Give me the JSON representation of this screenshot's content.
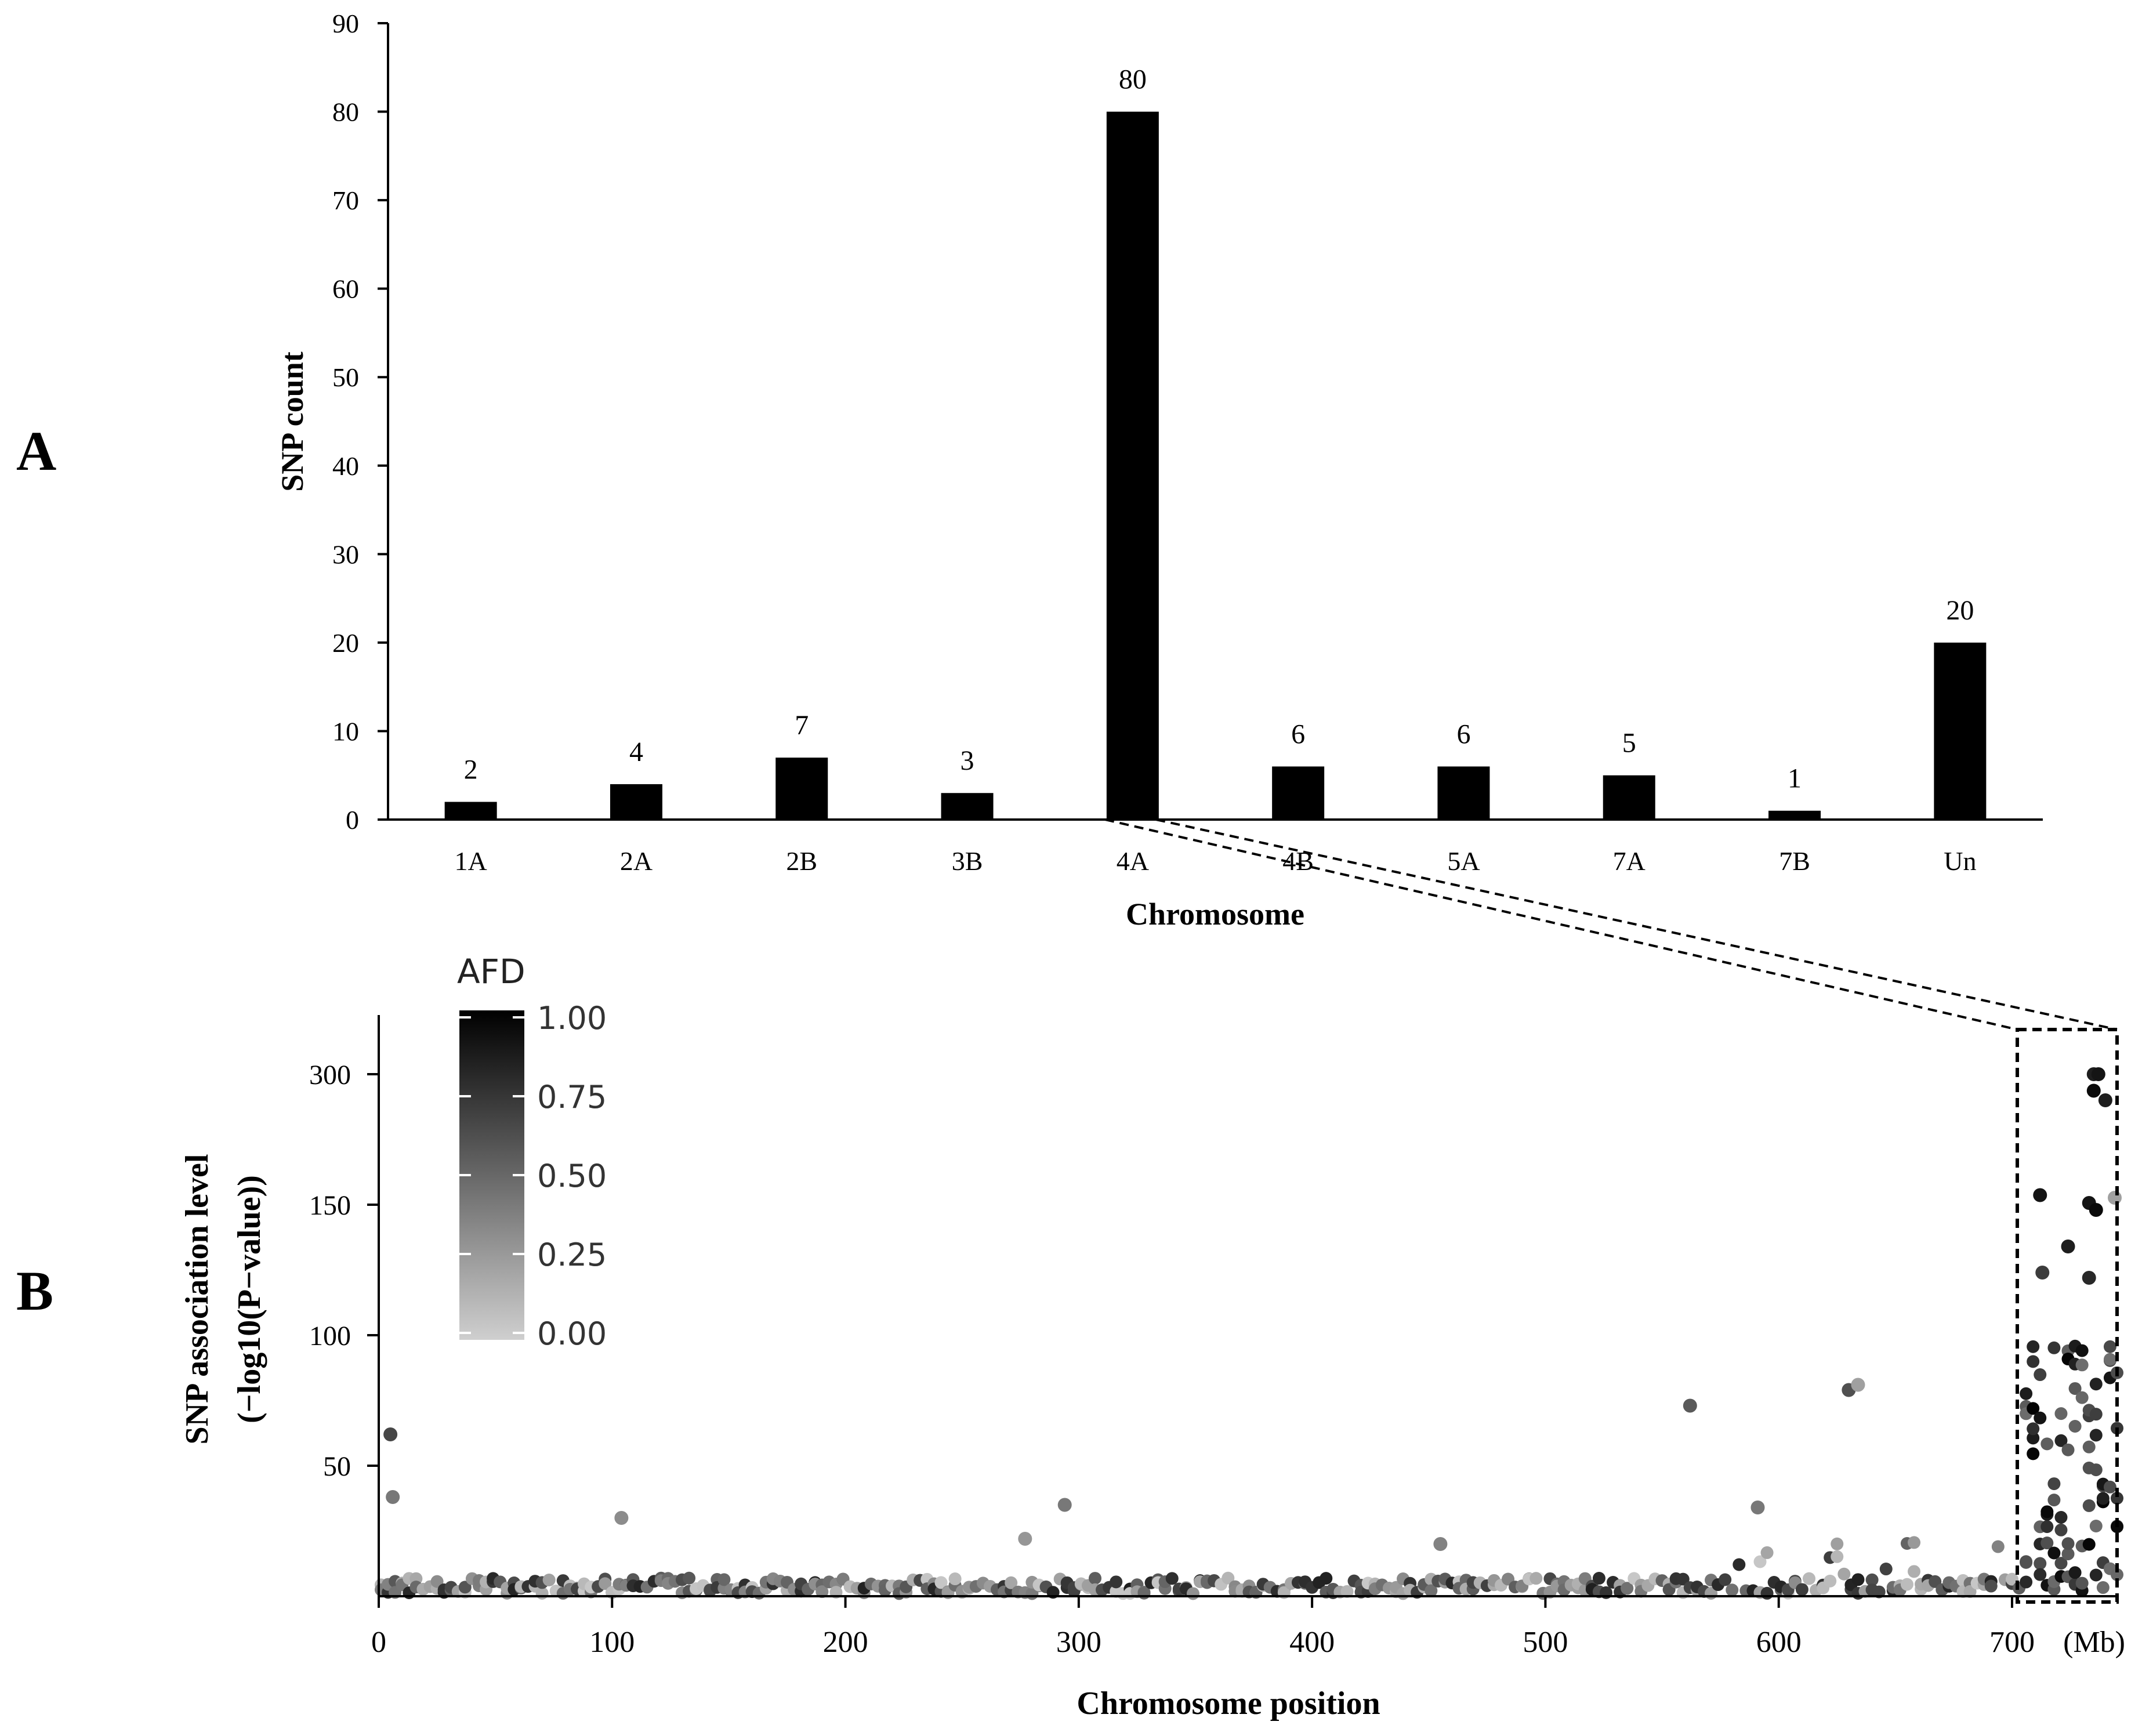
{
  "panel_a_label": "A",
  "panel_b_label": "B",
  "chart_data": [
    {
      "type": "bar",
      "panel": "A",
      "title": "",
      "xlabel": "Chromosome",
      "ylabel": "SNP count",
      "ylim": [
        0,
        90
      ],
      "yticks": [
        0,
        10,
        20,
        30,
        40,
        50,
        60,
        70,
        80,
        90
      ],
      "categories": [
        "1A",
        "2A",
        "2B",
        "3B",
        "4A",
        "4B",
        "5A",
        "7A",
        "7B",
        "Un"
      ],
      "values": [
        2,
        4,
        7,
        3,
        80,
        6,
        6,
        5,
        1,
        20
      ],
      "data_labels": [
        "2",
        "4",
        "7",
        "3",
        "80",
        "6",
        "6",
        "5",
        "1",
        "20"
      ],
      "bar_color": "#000000",
      "grid": false
    },
    {
      "type": "scatter",
      "panel": "B",
      "title": "",
      "xlabel": "Chromosome position",
      "x_unit_label": "(Mb)",
      "ylabel_line1": "SNP association level",
      "ylabel_line2": "(−log10(P−value))",
      "xlim": [
        0,
        745
      ],
      "xticks": [
        0,
        100,
        200,
        300,
        400,
        500,
        600,
        700
      ],
      "xtick_labels": [
        "0",
        "100",
        "200",
        "300",
        "400",
        "500",
        "600",
        "700"
      ],
      "ytick_values": [
        50,
        100,
        150,
        300
      ],
      "ytick_labels": [
        "50",
        "100",
        "150",
        "300"
      ],
      "y_axis_note": "broken axis: 50, 100, 150 then jump to 300",
      "highlight_region_x": [
        705,
        745
      ],
      "legend": {
        "title": "AFD",
        "labels": [
          "1.00",
          "0.75",
          "0.50",
          "0.25",
          "0.00"
        ],
        "min": 0.0,
        "max": 1.0,
        "color_low": "#c8c8c8",
        "color_high": "#000000",
        "placement": "top-left"
      },
      "notable_points": [
        {
          "x": 5,
          "y": 62,
          "afd": 0.65
        },
        {
          "x": 6,
          "y": 38,
          "afd": 0.4
        },
        {
          "x": 104,
          "y": 30,
          "afd": 0.3
        },
        {
          "x": 277,
          "y": 22,
          "afd": 0.25
        },
        {
          "x": 294,
          "y": 35,
          "afd": 0.4
        },
        {
          "x": 455,
          "y": 20,
          "afd": 0.35
        },
        {
          "x": 562,
          "y": 73,
          "afd": 0.55
        },
        {
          "x": 591,
          "y": 34,
          "afd": 0.4
        },
        {
          "x": 630,
          "y": 79,
          "afd": 0.6
        },
        {
          "x": 634,
          "y": 81,
          "afd": 0.2
        },
        {
          "x": 712,
          "y": 161,
          "afd": 0.9
        },
        {
          "x": 713,
          "y": 124,
          "afd": 0.7
        },
        {
          "x": 724,
          "y": 134,
          "afd": 0.85
        },
        {
          "x": 735,
          "y": 300,
          "afd": 0.85
        },
        {
          "x": 737,
          "y": 300,
          "afd": 0.9
        },
        {
          "x": 735,
          "y": 281,
          "afd": 0.95
        },
        {
          "x": 740,
          "y": 270,
          "afd": 0.85
        },
        {
          "x": 733,
          "y": 152,
          "afd": 0.9
        },
        {
          "x": 736,
          "y": 148,
          "afd": 0.95
        },
        {
          "x": 744,
          "y": 158,
          "afd": 0.2
        },
        {
          "x": 733,
          "y": 122,
          "afd": 0.8
        }
      ],
      "colors": {
        "point_low": "#c8c8c8",
        "point_high": "#000000"
      }
    }
  ]
}
